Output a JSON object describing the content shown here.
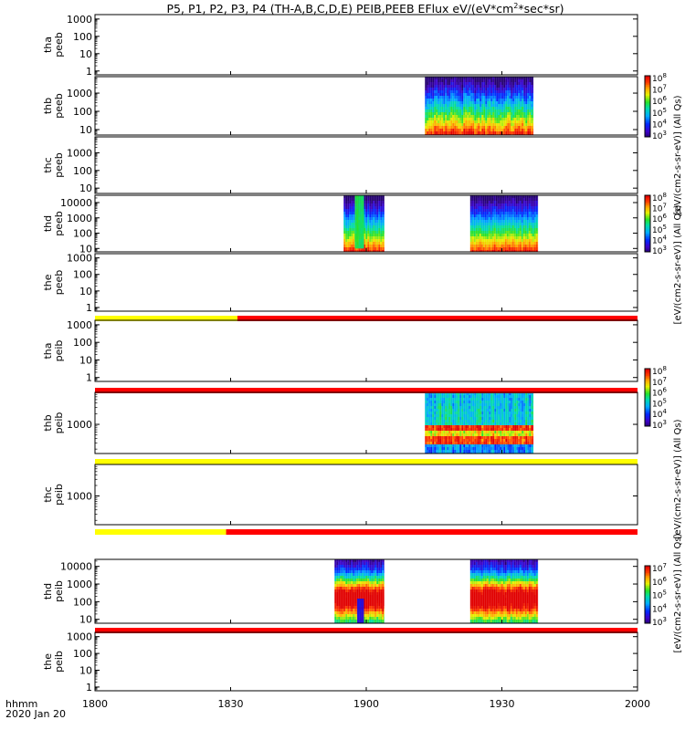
{
  "title": {
    "main": "P5, P1, P2, P3, P4 (TH-A,B,C,D,E) PEIB,PEEB EFlux eV/(eV*cm",
    "sup": "2",
    "tail": "*sec*sr)"
  },
  "time_axis": {
    "caption_line1": "hhmm",
    "caption_line2": "2020 Jan 20",
    "tick_labels": [
      "1800",
      "1830",
      "1900",
      "1930",
      "2000"
    ],
    "range_minutes": [
      0,
      120
    ],
    "tick_minutes": [
      0,
      30,
      60,
      90,
      120
    ]
  },
  "colors": {
    "flag_yellow": "#ffff00",
    "flag_red": "#ff0000",
    "spectro_low": "#2a00a0",
    "spectro_high": "#e80000"
  },
  "chart_data": {
    "type": "heatmap",
    "x_units": "minutes after 1800 UT",
    "panels": [
      {
        "id": "tha-peeb",
        "name": [
          "tha",
          "peeb"
        ],
        "log": true,
        "ylim": [
          0.6,
          1800
        ],
        "ticks": [
          1,
          10,
          100,
          1000
        ],
        "tick_labels": [
          "1",
          "10",
          "100",
          "1000"
        ],
        "blocks": []
      },
      {
        "id": "thb-peeb",
        "name": [
          "thb",
          "peeb"
        ],
        "log": true,
        "ylim": [
          5,
          8000
        ],
        "ticks": [
          10,
          100,
          1000
        ],
        "tick_labels": [
          "10",
          "100",
          "1000"
        ],
        "blocks": [
          {
            "x0": 73,
            "x1": 97,
            "ylo": 5,
            "yhi": 8000,
            "profile": "electron",
            "var": 0.6
          }
        ]
      },
      {
        "id": "thc-peeb",
        "name": [
          "thc",
          "peeb"
        ],
        "log": true,
        "ylim": [
          5,
          8000
        ],
        "ticks": [
          10,
          100,
          1000
        ],
        "tick_labels": [
          "10",
          "100",
          "1000"
        ],
        "blocks": []
      },
      {
        "id": "thd-peeb",
        "name": [
          "thd",
          "peeb"
        ],
        "log": true,
        "ylim": [
          6,
          30000
        ],
        "ticks": [
          10,
          100,
          1000,
          10000
        ],
        "tick_labels": [
          "10",
          "100",
          "1000",
          "10000"
        ],
        "blocks": [
          {
            "x0": 55,
            "x1": 64,
            "ylo": 6,
            "yhi": 30000,
            "profile": "electron",
            "var": 0.4
          },
          {
            "x0": 57.5,
            "x1": 59.5,
            "ylo": 10,
            "yhi": 30000,
            "profile": "flat_green",
            "var": 0.2
          },
          {
            "x0": 83,
            "x1": 98,
            "ylo": 6,
            "yhi": 30000,
            "profile": "electron",
            "var": 0.4
          }
        ]
      },
      {
        "id": "the-peeb",
        "name": [
          "the",
          "peeb"
        ],
        "log": true,
        "ylim": [
          0.6,
          1800
        ],
        "ticks": [
          1,
          10,
          100,
          1000
        ],
        "tick_labels": [
          "1",
          "10",
          "100",
          "1000"
        ],
        "blocks": []
      },
      {
        "id": "tha-peib",
        "name": [
          "tha",
          "peib"
        ],
        "log": true,
        "ylim": [
          0.6,
          1800
        ],
        "ticks": [
          1,
          10,
          100,
          1000
        ],
        "tick_labels": [
          "1",
          "10",
          "100",
          "1000"
        ],
        "blocks": []
      },
      {
        "id": "thb-peib",
        "name": [
          "thb",
          "peib"
        ],
        "log": true,
        "ylim": [
          150,
          8000
        ],
        "ticks": [
          1000
        ],
        "tick_labels": [
          "1000"
        ],
        "blocks": [
          {
            "x0": 73,
            "x1": 97,
            "ylo": 150,
            "yhi": 8000,
            "profile": "ion_banded",
            "var": 0.7
          }
        ]
      },
      {
        "id": "thc-peib",
        "name": [
          "thc",
          "peib"
        ],
        "log": true,
        "ylim": [
          150,
          8000
        ],
        "ticks": [
          1000
        ],
        "tick_labels": [
          "1000"
        ],
        "blocks": []
      },
      {
        "id": "thd-peib",
        "name": [
          "thd",
          "peib"
        ],
        "log": true,
        "ylim": [
          6,
          25000
        ],
        "ticks": [
          10,
          100,
          1000,
          10000
        ],
        "tick_labels": [
          "10",
          "100",
          "1000",
          "10000"
        ],
        "blocks": [
          {
            "x0": 53,
            "x1": 64,
            "ylo": 6,
            "yhi": 25000,
            "profile": "ion",
            "var": 0.5
          },
          {
            "x0": 58,
            "x1": 59.5,
            "ylo": 6,
            "yhi": 150,
            "profile": "flat_blue",
            "var": 0.2
          },
          {
            "x0": 83,
            "x1": 98,
            "ylo": 6,
            "yhi": 25000,
            "profile": "ion",
            "var": 0.5
          }
        ]
      },
      {
        "id": "the-peib",
        "name": [
          "the",
          "peib"
        ],
        "log": true,
        "ylim": [
          0.6,
          1800
        ],
        "ticks": [
          1,
          10,
          100,
          1000
        ],
        "tick_labels": [
          "1",
          "10",
          "100",
          "1000"
        ],
        "blocks": []
      }
    ],
    "flag_bars": [
      {
        "after_panel": "the-peeb",
        "segments": [
          {
            "x0": 0,
            "x1": 31.5,
            "color": "flag_yellow"
          },
          {
            "x0": 31.5,
            "x1": 120,
            "color": "flag_red"
          }
        ]
      },
      {
        "after_panel": "tha-peib",
        "segments": [
          {
            "x0": 0,
            "x1": 120,
            "color": "flag_red"
          }
        ]
      },
      {
        "after_panel": "thb-peib",
        "segments": [
          {
            "x0": 0,
            "x1": 120,
            "color": "flag_yellow"
          }
        ]
      },
      {
        "after_panel": "thc-peib",
        "segments": [
          {
            "x0": 0,
            "x1": 29,
            "color": "flag_yellow"
          },
          {
            "x0": 29,
            "x1": 120,
            "color": "flag_red"
          }
        ]
      },
      {
        "after_panel": "thd-peib",
        "segments": [
          {
            "x0": 0,
            "x1": 120,
            "color": "flag_red"
          }
        ]
      }
    ],
    "colorbars": [
      {
        "id": "cb-thb-peeb",
        "ticks": [
          3,
          4,
          5,
          6,
          7,
          8
        ],
        "label": "[eV/(cm2-s-sr-eV)] (All Qs)"
      },
      {
        "id": "cb-thd-peeb",
        "ticks": [
          3,
          4,
          5,
          6,
          7,
          8
        ],
        "label": "[eV/(cm2-s-sr-eV)] (All Qs)"
      },
      {
        "id": "cb-thb-peib",
        "ticks": [
          3,
          4,
          5,
          6,
          7,
          8
        ],
        "label": "[eV/(cm2-s-sr-eV)] (All Qs)"
      },
      {
        "id": "cb-thd-peib",
        "ticks": [
          3,
          4,
          5,
          6,
          7
        ],
        "label": "[eV/(cm2-s-sr-eV)] (All Qs)"
      }
    ]
  }
}
